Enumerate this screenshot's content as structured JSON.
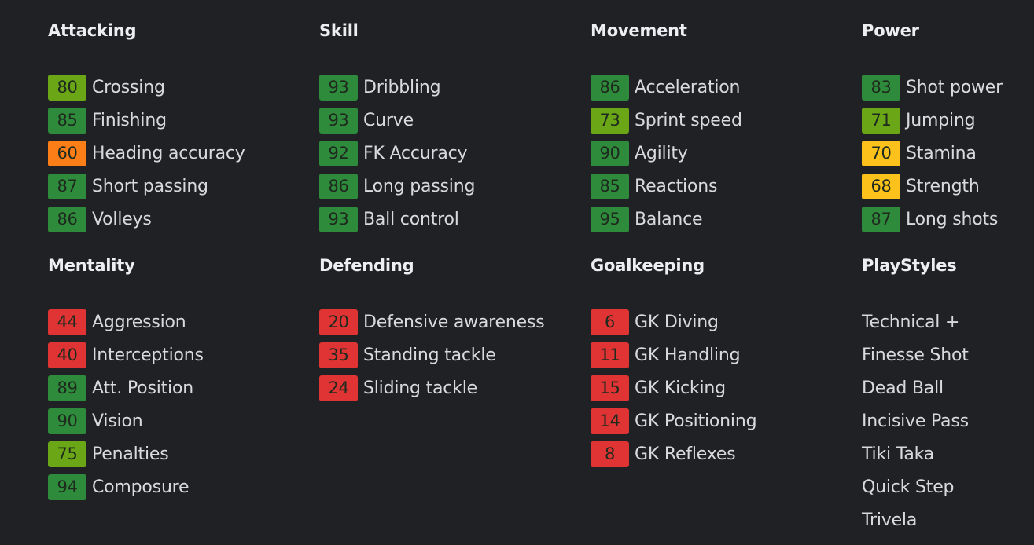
{
  "colors": {
    "background": "#202124",
    "green": "#2e8b3b",
    "lime": "#6aa616",
    "orange": "#fb7e17",
    "yellow": "#fcc21b",
    "red": "#e03434"
  },
  "sections": [
    {
      "title": "Attacking",
      "stats": [
        {
          "value": "80",
          "label": "Crossing",
          "tier": "lime"
        },
        {
          "value": "85",
          "label": "Finishing",
          "tier": "green"
        },
        {
          "value": "60",
          "label": "Heading accuracy",
          "tier": "orange"
        },
        {
          "value": "87",
          "label": "Short passing",
          "tier": "green"
        },
        {
          "value": "86",
          "label": "Volleys",
          "tier": "green"
        }
      ]
    },
    {
      "title": "Skill",
      "stats": [
        {
          "value": "93",
          "label": "Dribbling",
          "tier": "green"
        },
        {
          "value": "93",
          "label": "Curve",
          "tier": "green"
        },
        {
          "value": "92",
          "label": "FK Accuracy",
          "tier": "green"
        },
        {
          "value": "86",
          "label": "Long passing",
          "tier": "green"
        },
        {
          "value": "93",
          "label": "Ball control",
          "tier": "green"
        }
      ]
    },
    {
      "title": "Movement",
      "stats": [
        {
          "value": "86",
          "label": "Acceleration",
          "tier": "green"
        },
        {
          "value": "73",
          "label": "Sprint speed",
          "tier": "lime"
        },
        {
          "value": "90",
          "label": "Agility",
          "tier": "green"
        },
        {
          "value": "85",
          "label": "Reactions",
          "tier": "green"
        },
        {
          "value": "95",
          "label": "Balance",
          "tier": "green"
        }
      ]
    },
    {
      "title": "Power",
      "stats": [
        {
          "value": "83",
          "label": "Shot power",
          "tier": "green"
        },
        {
          "value": "71",
          "label": "Jumping",
          "tier": "lime"
        },
        {
          "value": "70",
          "label": "Stamina",
          "tier": "yellow"
        },
        {
          "value": "68",
          "label": "Strength",
          "tier": "yellow"
        },
        {
          "value": "87",
          "label": "Long shots",
          "tier": "green"
        }
      ]
    },
    {
      "title": "Mentality",
      "stats": [
        {
          "value": "44",
          "label": "Aggression",
          "tier": "red"
        },
        {
          "value": "40",
          "label": "Interceptions",
          "tier": "red"
        },
        {
          "value": "89",
          "label": "Att. Position",
          "tier": "green"
        },
        {
          "value": "90",
          "label": "Vision",
          "tier": "green"
        },
        {
          "value": "75",
          "label": "Penalties",
          "tier": "lime"
        },
        {
          "value": "94",
          "label": "Composure",
          "tier": "green"
        }
      ]
    },
    {
      "title": "Defending",
      "stats": [
        {
          "value": "20",
          "label": "Defensive awareness",
          "tier": "red"
        },
        {
          "value": "35",
          "label": "Standing tackle",
          "tier": "red"
        },
        {
          "value": "24",
          "label": "Sliding tackle",
          "tier": "red"
        }
      ]
    },
    {
      "title": "Goalkeeping",
      "stats": [
        {
          "value": "6",
          "label": "GK Diving",
          "tier": "red"
        },
        {
          "value": "11",
          "label": "GK Handling",
          "tier": "red"
        },
        {
          "value": "15",
          "label": "GK Kicking",
          "tier": "red"
        },
        {
          "value": "14",
          "label": "GK Positioning",
          "tier": "red"
        },
        {
          "value": "8",
          "label": "GK Reflexes",
          "tier": "red"
        }
      ]
    }
  ],
  "playstyles": {
    "title": "PlayStyles",
    "items": [
      "Technical +",
      "Finesse Shot",
      "Dead Ball",
      "Incisive Pass",
      "Tiki Taka",
      "Quick Step",
      "Trivela"
    ]
  }
}
